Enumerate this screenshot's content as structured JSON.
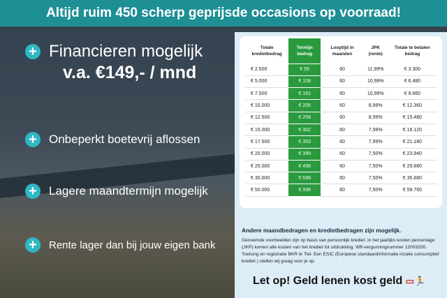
{
  "header": {
    "title": "Altijd ruim 450 scherp geprijsde occasions op voorraad!"
  },
  "features": [
    {
      "label": "Financieren mogelijk",
      "sub": "v.a. €149,- / mnd"
    },
    {
      "label": "Onbeperkt boetevrij aflossen"
    },
    {
      "label": "Lagere maandtermijn mogelijk"
    },
    {
      "label": "Rente lager dan bij jouw eigen bank"
    }
  ],
  "table": {
    "columns": [
      "Totale kredietbedrag",
      "Termijn bedrag",
      "Looptijd in maanden",
      "JPK (rente)",
      "Totale te betalen bedrag"
    ],
    "rows": [
      [
        "€ 2.500",
        "€ 55",
        "60",
        "11,99%",
        "€ 3.300"
      ],
      [
        "€ 5.000",
        "€ 108",
        "60",
        "10,99%",
        "€ 6.480"
      ],
      [
        "€ 7.500",
        "€ 161",
        "60",
        "10,99%",
        "€ 9.660"
      ],
      [
        "€ 10.000",
        "€ 206",
        "60",
        "8,99%",
        "€ 12.360"
      ],
      [
        "€ 12.500",
        "€ 258",
        "60",
        "8,99%",
        "€ 15.480"
      ],
      [
        "€ 15.000",
        "€ 302",
        "60",
        "7,99%",
        "€ 18.120"
      ],
      [
        "€ 17.500",
        "€ 353",
        "60",
        "7,99%",
        "€ 21.180"
      ],
      [
        "€ 20.000",
        "€ 399",
        "60",
        "7,50%",
        "€ 23.940"
      ],
      [
        "€ 25.000",
        "€ 498",
        "60",
        "7,50%",
        "€ 29.880"
      ],
      [
        "€ 30.000",
        "€ 598",
        "60",
        "7,50%",
        "€ 35.880"
      ],
      [
        "€ 50.000",
        "€ 996",
        "60",
        "7,50%",
        "€ 59.760"
      ]
    ]
  },
  "note": {
    "title": "Andere maandbedragen en kredietbedragen zijn mogelijk.",
    "body": "Genoemde voorbeelden zijn op basis van persoonlijk krediet. In het jaarlijks kosten percentage (JKP) komen alle kosten van het krediet tot uitdrukking. Wft-vergunningnummer 12003200. Toetsing en registratie BKR te Tiel. Een ESIC (Europese standaardinformatie inzake consumptief krediet ) stellen wij graag voor je op."
  },
  "warning": "Let op! Geld lenen kost geld",
  "plus_icon": "+",
  "colors": {
    "header": "#1f8f96",
    "accent": "#2fb7c4",
    "green": "#2b9a3f"
  }
}
